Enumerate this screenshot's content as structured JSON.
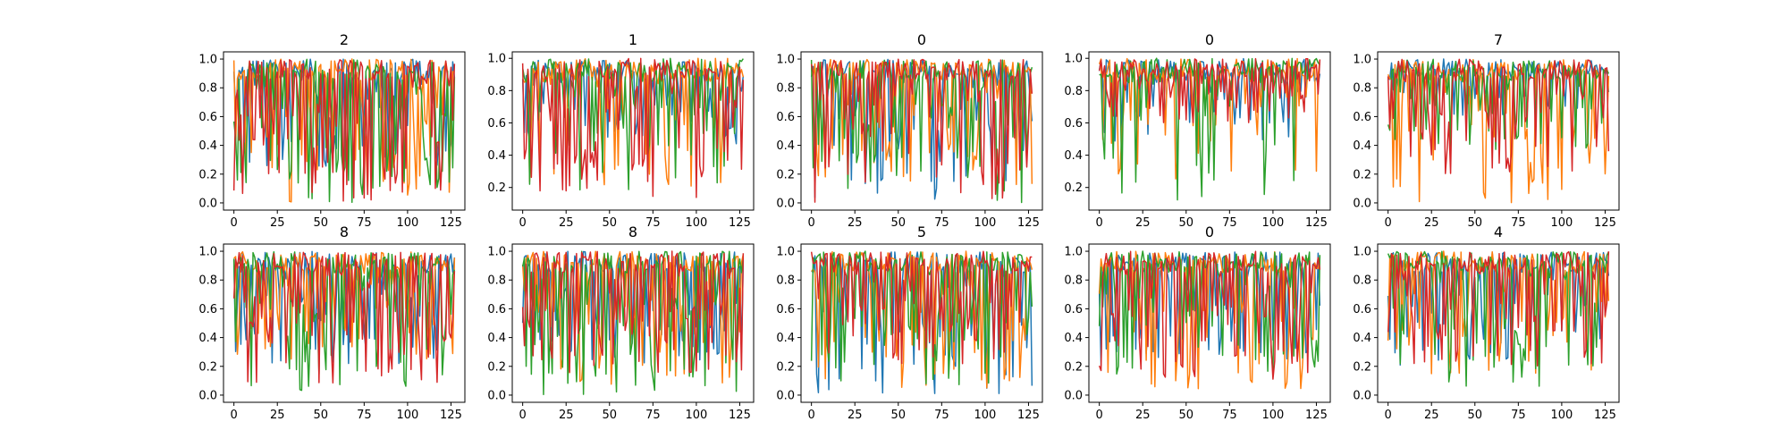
{
  "figure": {
    "background": "#ffffff",
    "series_colors": [
      "#1f77b4",
      "#ff7f0e",
      "#2ca02c",
      "#d62728"
    ]
  },
  "chart_data": [
    {
      "type": "line",
      "title": "2",
      "xlim": [
        -6,
        133
      ],
      "ylim": [
        -0.05,
        1.05
      ],
      "xticks": [
        0,
        25,
        50,
        75,
        100,
        125
      ],
      "yticks": [
        0.0,
        0.2,
        0.4,
        0.6,
        0.8,
        1.0
      ],
      "x_range": [
        0,
        127
      ],
      "min_floor": [
        0.25,
        0.0,
        0.0,
        0.0
      ],
      "dip_prob": [
        0.55,
        0.45,
        0.55,
        0.55
      ],
      "series": [
        {
          "color": "#1f77b4"
        },
        {
          "color": "#ff7f0e"
        },
        {
          "color": "#2ca02c"
        },
        {
          "color": "#d62728"
        }
      ]
    },
    {
      "type": "line",
      "title": "1",
      "xlim": [
        -6,
        133
      ],
      "ylim": [
        0.06,
        1.04
      ],
      "xticks": [
        0,
        25,
        50,
        75,
        100,
        125
      ],
      "yticks": [
        0.2,
        0.4,
        0.6,
        0.8,
        1.0
      ],
      "x_range": [
        0,
        127
      ],
      "min_floor": [
        0.45,
        0.2,
        0.18,
        0.12
      ],
      "dip_prob": [
        0.4,
        0.35,
        0.45,
        0.45
      ],
      "series": [
        {
          "color": "#1f77b4"
        },
        {
          "color": "#ff7f0e"
        },
        {
          "color": "#2ca02c"
        },
        {
          "color": "#d62728"
        }
      ]
    },
    {
      "type": "line",
      "title": "0",
      "xlim": [
        -6,
        133
      ],
      "ylim": [
        -0.05,
        1.05
      ],
      "xticks": [
        0,
        25,
        50,
        75,
        100,
        125
      ],
      "yticks": [
        0.0,
        0.2,
        0.4,
        0.6,
        0.8,
        1.0
      ],
      "x_range": [
        0,
        127
      ],
      "min_floor": [
        0.0,
        0.1,
        0.0,
        0.0
      ],
      "dip_prob": [
        0.5,
        0.45,
        0.55,
        0.5
      ],
      "series": [
        {
          "color": "#1f77b4"
        },
        {
          "color": "#ff7f0e"
        },
        {
          "color": "#2ca02c"
        },
        {
          "color": "#d62728"
        }
      ]
    },
    {
      "type": "line",
      "title": "0",
      "xlim": [
        -6,
        133
      ],
      "ylim": [
        0.06,
        1.04
      ],
      "xticks": [
        0,
        25,
        50,
        75,
        100,
        125
      ],
      "yticks": [
        0.2,
        0.4,
        0.6,
        0.8,
        1.0
      ],
      "x_range": [
        0,
        127
      ],
      "min_floor": [
        0.48,
        0.25,
        0.1,
        0.6
      ],
      "dip_prob": [
        0.35,
        0.3,
        0.25,
        0.45
      ],
      "series": [
        {
          "color": "#1f77b4"
        },
        {
          "color": "#ff7f0e"
        },
        {
          "color": "#2ca02c"
        },
        {
          "color": "#d62728"
        }
      ]
    },
    {
      "type": "line",
      "title": "7",
      "xlim": [
        -6,
        133
      ],
      "ylim": [
        -0.05,
        1.05
      ],
      "xticks": [
        0,
        25,
        50,
        75,
        100,
        125
      ],
      "yticks": [
        0.0,
        0.2,
        0.4,
        0.6,
        0.8,
        1.0
      ],
      "x_range": [
        0,
        127
      ],
      "min_floor": [
        0.6,
        0.0,
        0.35,
        0.2
      ],
      "dip_prob": [
        0.35,
        0.45,
        0.4,
        0.5
      ],
      "series": [
        {
          "color": "#1f77b4"
        },
        {
          "color": "#ff7f0e"
        },
        {
          "color": "#2ca02c"
        },
        {
          "color": "#d62728"
        }
      ]
    },
    {
      "type": "line",
      "title": "8",
      "xlim": [
        -6,
        133
      ],
      "ylim": [
        -0.05,
        1.05
      ],
      "xticks": [
        0,
        25,
        50,
        75,
        100,
        125
      ],
      "yticks": [
        0.0,
        0.2,
        0.4,
        0.6,
        0.8,
        1.0
      ],
      "x_range": [
        0,
        127
      ],
      "min_floor": [
        0.22,
        0.25,
        0.03,
        0.07
      ],
      "dip_prob": [
        0.5,
        0.45,
        0.5,
        0.55
      ],
      "series": [
        {
          "color": "#1f77b4"
        },
        {
          "color": "#ff7f0e"
        },
        {
          "color": "#2ca02c"
        },
        {
          "color": "#d62728"
        }
      ]
    },
    {
      "type": "line",
      "title": "8",
      "xlim": [
        -6,
        133
      ],
      "ylim": [
        -0.05,
        1.05
      ],
      "xticks": [
        0,
        25,
        50,
        75,
        100,
        125
      ],
      "yticks": [
        0.0,
        0.2,
        0.4,
        0.6,
        0.8,
        1.0
      ],
      "x_range": [
        0,
        127
      ],
      "min_floor": [
        0.2,
        0.05,
        0.0,
        0.15
      ],
      "dip_prob": [
        0.5,
        0.45,
        0.55,
        0.55
      ],
      "series": [
        {
          "color": "#1f77b4"
        },
        {
          "color": "#ff7f0e"
        },
        {
          "color": "#2ca02c"
        },
        {
          "color": "#d62728"
        }
      ]
    },
    {
      "type": "line",
      "title": "5",
      "xlim": [
        -6,
        133
      ],
      "ylim": [
        -0.05,
        1.05
      ],
      "xticks": [
        0,
        25,
        50,
        75,
        100,
        125
      ],
      "yticks": [
        0.0,
        0.2,
        0.4,
        0.6,
        0.8,
        1.0
      ],
      "x_range": [
        0,
        127
      ],
      "min_floor": [
        0.0,
        0.0,
        0.05,
        0.2
      ],
      "dip_prob": [
        0.45,
        0.45,
        0.5,
        0.5
      ],
      "series": [
        {
          "color": "#1f77b4"
        },
        {
          "color": "#ff7f0e"
        },
        {
          "color": "#2ca02c"
        },
        {
          "color": "#d62728"
        }
      ]
    },
    {
      "type": "line",
      "title": "0",
      "xlim": [
        -6,
        133
      ],
      "ylim": [
        -0.05,
        1.05
      ],
      "xticks": [
        0,
        25,
        50,
        75,
        100,
        125
      ],
      "yticks": [
        0.0,
        0.2,
        0.4,
        0.6,
        0.8,
        1.0
      ],
      "x_range": [
        0,
        127
      ],
      "min_floor": [
        0.2,
        0.0,
        0.12,
        0.1
      ],
      "dip_prob": [
        0.45,
        0.4,
        0.45,
        0.5
      ],
      "series": [
        {
          "color": "#1f77b4"
        },
        {
          "color": "#ff7f0e"
        },
        {
          "color": "#2ca02c"
        },
        {
          "color": "#d62728"
        }
      ]
    },
    {
      "type": "line",
      "title": "4",
      "xlim": [
        -6,
        133
      ],
      "ylim": [
        -0.05,
        1.05
      ],
      "xticks": [
        0,
        25,
        50,
        75,
        100,
        125
      ],
      "yticks": [
        0.0,
        0.2,
        0.4,
        0.6,
        0.8,
        1.0
      ],
      "x_range": [
        0,
        127
      ],
      "min_floor": [
        0.2,
        0.1,
        0.05,
        0.2
      ],
      "dip_prob": [
        0.4,
        0.4,
        0.45,
        0.5
      ],
      "series": [
        {
          "color": "#1f77b4"
        },
        {
          "color": "#ff7f0e"
        },
        {
          "color": "#2ca02c"
        },
        {
          "color": "#d62728"
        }
      ]
    }
  ]
}
